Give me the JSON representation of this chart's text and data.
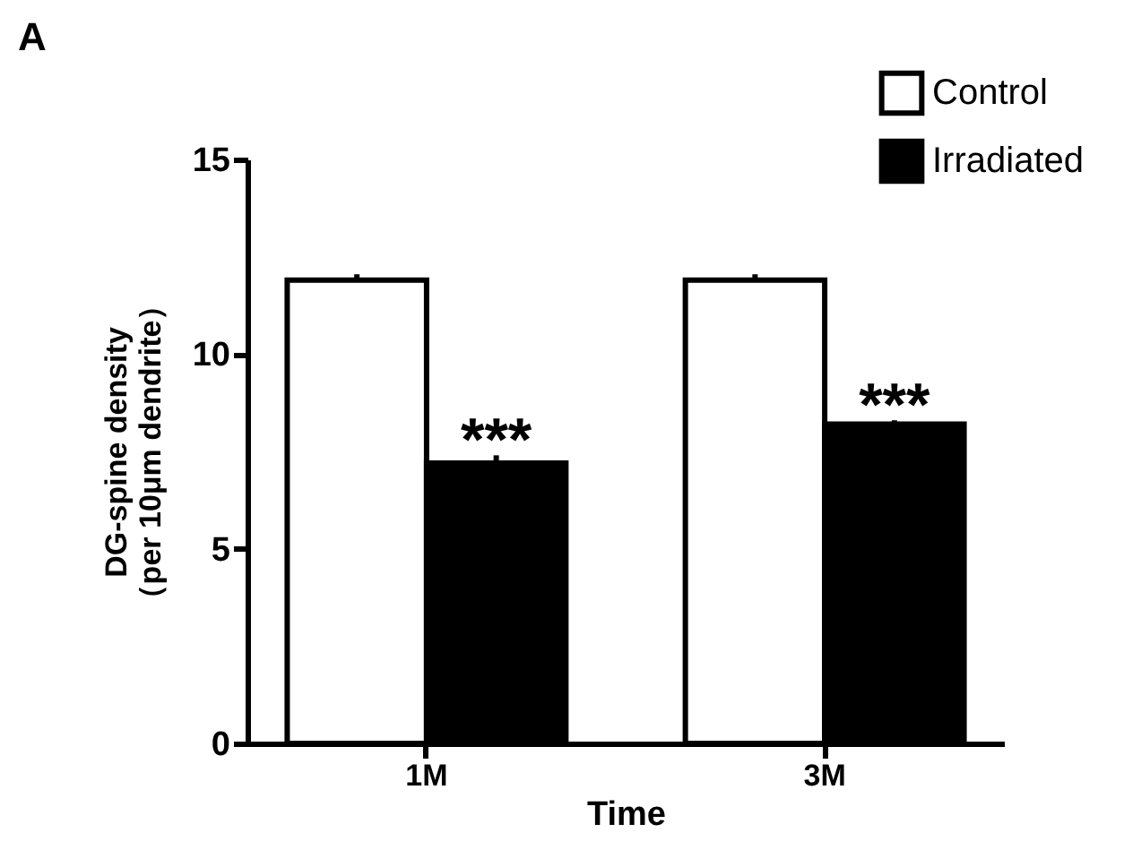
{
  "chart_data": {
    "type": "bar",
    "title": "A",
    "xlabel": "Time",
    "ylabel": "DG-spine density\n（per 10μm dendrite）",
    "categories": [
      "1M",
      "3M"
    ],
    "series": [
      {
        "name": "Control",
        "color": "#ffffff",
        "values": [
          11.9,
          11.9
        ],
        "errors": [
          0.15,
          0.15
        ]
      },
      {
        "name": "Irradiated",
        "color": "#000000",
        "values": [
          7.2,
          8.2
        ],
        "errors": [
          0.2,
          0.1
        ]
      }
    ],
    "ylim": [
      0,
      15
    ],
    "yticks": [
      0,
      5,
      10,
      15
    ],
    "grid": false,
    "legend": "top right",
    "annotations": [
      {
        "text": "***",
        "x": "1M",
        "y": 7.6
      },
      {
        "text": "***",
        "x": "3M",
        "y": 8.5
      }
    ]
  }
}
